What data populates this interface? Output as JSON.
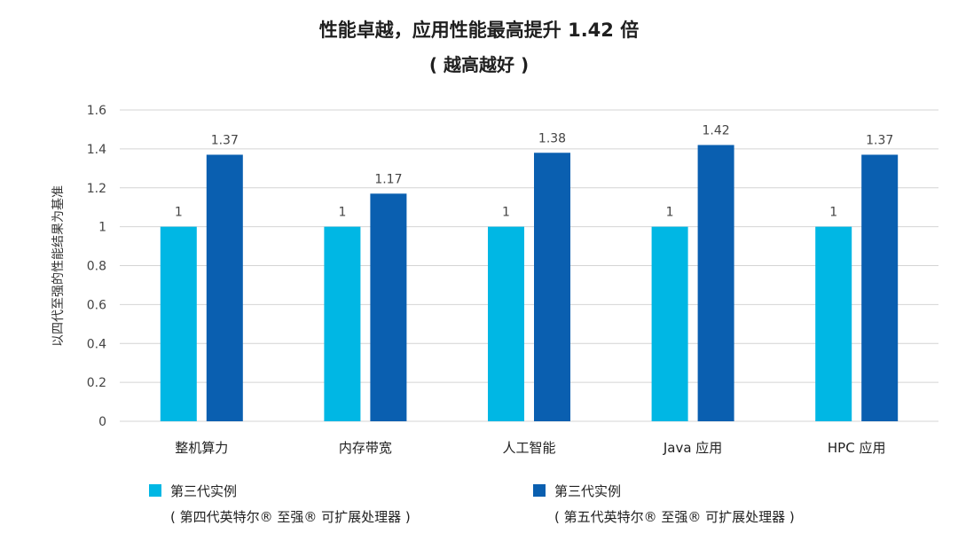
{
  "chart_data": {
    "type": "bar",
    "title": "性能卓越，应用性能最高提升 1.42 倍",
    "subtitle": "( 越高越好 )",
    "ylabel": "以四代至强的性能结果为基准",
    "xlabel": "",
    "categories": [
      "整机算力",
      "内存带宽",
      "人工智能",
      "Java 应用",
      "HPC 应用"
    ],
    "series": [
      {
        "name": "第三代实例",
        "name_line2": "( 第四代英特尔® 至强® 可扩展处理器 )",
        "color": "#00b7e4",
        "values": [
          1,
          1,
          1,
          1,
          1
        ]
      },
      {
        "name": "第三代实例",
        "name_line2": "( 第五代英特尔® 至强® 可扩展处理器 )",
        "color": "#0a5fb0",
        "values": [
          1.37,
          1.17,
          1.38,
          1.42,
          1.37
        ]
      }
    ],
    "ylim": [
      0,
      1.6
    ],
    "yticks": [
      0,
      0.2,
      0.4,
      0.6,
      0.8,
      1,
      1.2,
      1.4,
      1.6
    ],
    "grid": true,
    "legend_position": "bottom"
  }
}
